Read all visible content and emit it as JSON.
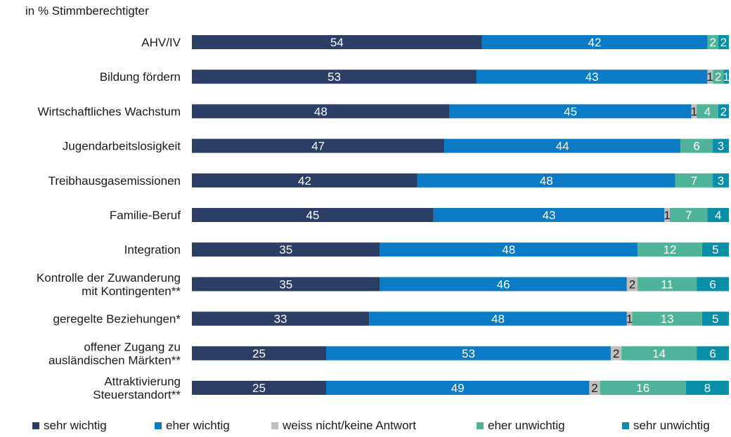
{
  "chart_data": {
    "type": "bar",
    "orientation": "horizontal-stacked",
    "unit_label": "in % Stimmberechtigter",
    "xlim": [
      0,
      100
    ],
    "grid": false,
    "legend_position": "bottom",
    "categories": [
      [
        "AHV/IV"
      ],
      [
        "Bildung fördern"
      ],
      [
        "Wirtschaftliches Wachstum"
      ],
      [
        "Jugendarbeitslosigkeit"
      ],
      [
        "Treibhausgasemissionen"
      ],
      [
        "Familie-Beruf"
      ],
      [
        "Integration"
      ],
      [
        "Kontrolle der Zuwanderung",
        "mit Kontingenten**"
      ],
      [
        "geregelte Beziehungen*"
      ],
      [
        "offener Zugang zu",
        "ausländischen Märkten**"
      ],
      [
        "Attraktivierung",
        "Steuerstandort**"
      ]
    ],
    "series": [
      {
        "name": "sehr wichtig",
        "color": "#2c3e66",
        "label_color": "#ffffff",
        "values": [
          54,
          53,
          48,
          47,
          42,
          45,
          35,
          35,
          33,
          25,
          25
        ]
      },
      {
        "name": "eher wichtig",
        "color": "#0a7bc4",
        "label_color": "#ffffff",
        "values": [
          42,
          43,
          45,
          44,
          48,
          43,
          48,
          46,
          48,
          53,
          49
        ]
      },
      {
        "name": "weiss nicht/keine Antwort",
        "color": "#bfbfbf",
        "label_color": "#1a1a1a",
        "values": [
          0,
          1,
          1,
          0,
          0,
          1,
          0,
          2,
          1,
          2,
          2
        ]
      },
      {
        "name": "eher unwichtig",
        "color": "#4fb39a",
        "label_color": "#ffffff",
        "values": [
          2,
          2,
          4,
          6,
          7,
          7,
          12,
          11,
          13,
          14,
          16
        ]
      },
      {
        "name": "sehr unwichtig",
        "color": "#0a8ea8",
        "label_color": "#ffffff",
        "values": [
          2,
          1,
          2,
          3,
          3,
          4,
          5,
          6,
          5,
          6,
          8
        ]
      }
    ]
  }
}
